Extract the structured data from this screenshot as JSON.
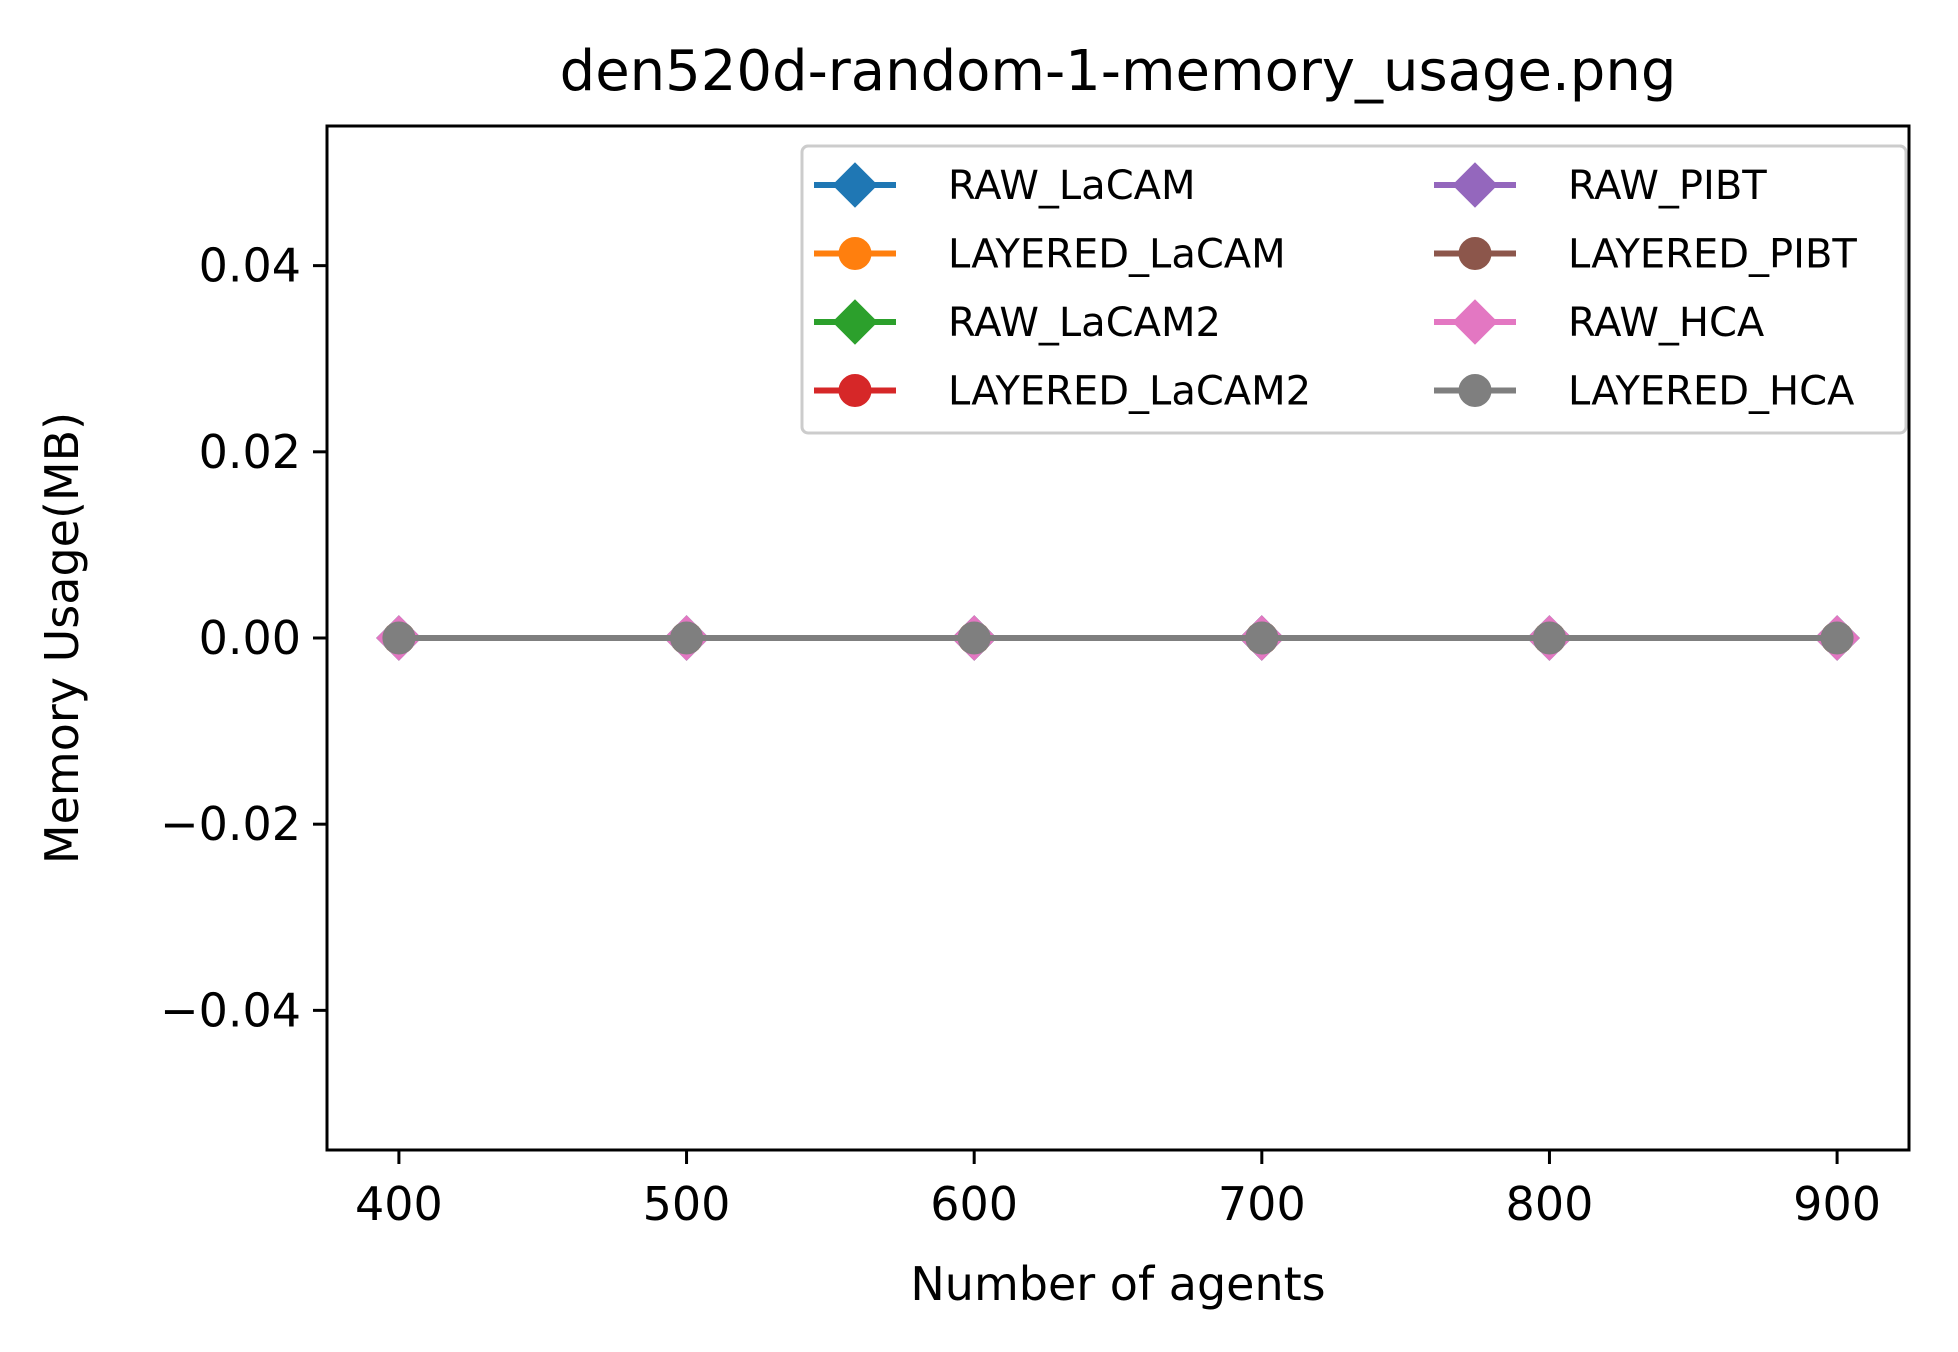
{
  "chart_data": {
    "type": "line",
    "title": "den520d-random-1-memory_usage.png",
    "xlabel": "Number of agents",
    "ylabel": "Memory Usage(MB)",
    "x": [
      400,
      500,
      600,
      700,
      800,
      900
    ],
    "xlim": [
      375,
      925
    ],
    "ylim": [
      -0.055,
      0.055
    ],
    "x_ticks": [
      400,
      500,
      600,
      700,
      800,
      900
    ],
    "x_tick_labels": [
      "400",
      "500",
      "600",
      "700",
      "800",
      "900"
    ],
    "y_ticks": [
      -0.04,
      -0.02,
      0.0,
      0.02,
      0.04
    ],
    "y_tick_labels": [
      "−0.04",
      "−0.02",
      "0.00",
      "0.02",
      "0.04"
    ],
    "grid": false,
    "legend": {
      "placement": "top-right",
      "columns": 2
    },
    "series": [
      {
        "name": "RAW_LaCAM",
        "color": "#1f77b4",
        "marker": "diamond",
        "values": [
          0,
          0,
          0,
          0,
          0,
          0
        ]
      },
      {
        "name": "LAYERED_LaCAM",
        "color": "#ff7f0e",
        "marker": "circle",
        "values": [
          0,
          0,
          0,
          0,
          0,
          0
        ]
      },
      {
        "name": "RAW_LaCAM2",
        "color": "#2ca02c",
        "marker": "diamond",
        "values": [
          0,
          0,
          0,
          0,
          0,
          0
        ]
      },
      {
        "name": "LAYERED_LaCAM2",
        "color": "#d62728",
        "marker": "circle",
        "values": [
          0,
          0,
          0,
          0,
          0,
          0
        ]
      },
      {
        "name": "RAW_PIBT",
        "color": "#9467bd",
        "marker": "diamond",
        "values": [
          0,
          0,
          0,
          0,
          0,
          0
        ]
      },
      {
        "name": "LAYERED_PIBT",
        "color": "#8c564b",
        "marker": "circle",
        "values": [
          0,
          0,
          0,
          0,
          0,
          0
        ]
      },
      {
        "name": "RAW_HCA",
        "color": "#e377c2",
        "marker": "diamond",
        "values": [
          0,
          0,
          0,
          0,
          0,
          0
        ]
      },
      {
        "name": "LAYERED_HCA",
        "color": "#7f7f7f",
        "marker": "circle",
        "values": [
          0,
          0,
          0,
          0,
          0,
          0
        ]
      }
    ]
  }
}
